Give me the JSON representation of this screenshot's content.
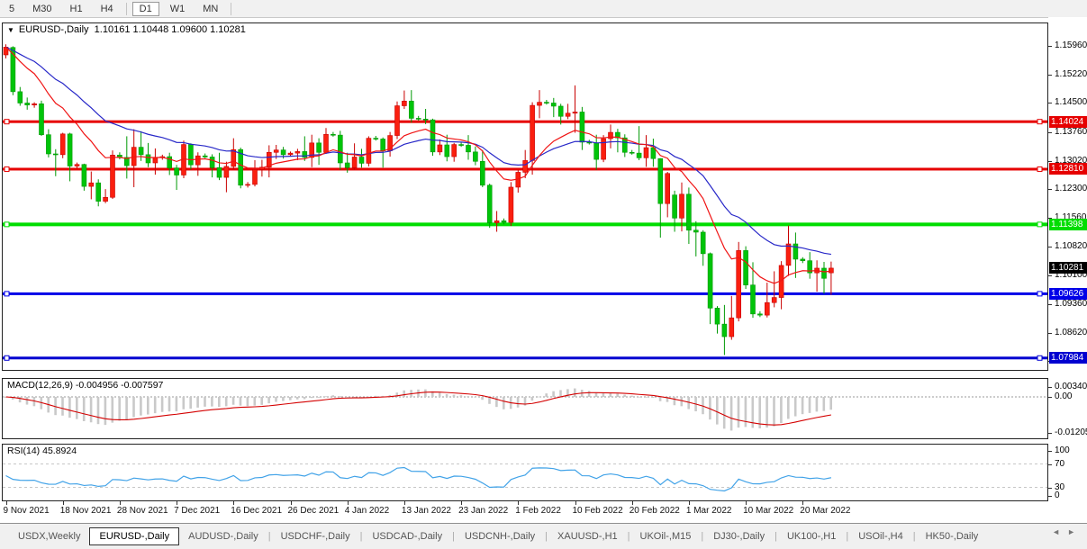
{
  "toolbar": {
    "buttons": [
      "5",
      "M30",
      "H1",
      "H4",
      "D1",
      "W1",
      "MN"
    ],
    "active": "D1"
  },
  "chart": {
    "dropdown_arrow": "▼",
    "symbol_label": "EURUSD-,Daily",
    "ohlc_text": "1.10161 1.10448 1.09600 1.10281",
    "open": "1.10161",
    "high": "1.10448",
    "low": "1.09600",
    "close": "1.10281"
  },
  "price_axis": {
    "ticks": [
      "1.15960",
      "1.15220",
      "1.14500",
      "1.13760",
      "1.13020",
      "1.12300",
      "1.11560",
      "1.10820",
      "1.10100",
      "1.09360",
      "1.08620",
      "1.07900"
    ]
  },
  "levels": [
    {
      "price": 1.14024,
      "label": "1.14024",
      "color": "#e60000",
      "width": 3
    },
    {
      "price": 1.1281,
      "label": "1.12810",
      "color": "#e60000",
      "width": 3
    },
    {
      "price": 1.11398,
      "label": "1.11398",
      "color": "#00dd00",
      "width": 4
    },
    {
      "price": 1.09626,
      "label": "1.09626",
      "color": "#0000e8",
      "width": 3
    },
    {
      "price": 1.07984,
      "label": "1.07984",
      "color": "#0000d0",
      "width": 3
    }
  ],
  "current_price": {
    "value": 1.10281,
    "label": "1.10281",
    "color": "#000000"
  },
  "chart_data": {
    "type": "candlestick",
    "symbol": "EURUSD",
    "timeframe": "Daily",
    "ylim": [
      1.079,
      1.161
    ],
    "label_every": 8,
    "x_labels": [
      "9 Nov 2021",
      "18 Nov 2021",
      "28 Nov 2021",
      "7 Dec 2021",
      "16 Dec 2021",
      "26 Dec 2021",
      "4 Jan 2022",
      "13 Jan 2022",
      "23 Jan 2022",
      "1 Feb 2022",
      "10 Feb 2022",
      "20 Feb 2022",
      "1 Mar 2022",
      "10 Mar 2022",
      "20 Mar 2022"
    ],
    "candles": [
      [
        1.1573,
        1.16,
        1.1564,
        1.1593
      ],
      [
        1.1592,
        1.1595,
        1.147,
        1.1479
      ],
      [
        1.1479,
        1.1491,
        1.1443,
        1.145
      ],
      [
        1.145,
        1.1464,
        1.1433,
        1.1445
      ],
      [
        1.1445,
        1.1452,
        1.1438,
        1.1448
      ],
      [
        1.1448,
        1.1456,
        1.1366,
        1.1369
      ],
      [
        1.1369,
        1.1383,
        1.1311,
        1.132
      ],
      [
        1.132,
        1.1332,
        1.1263,
        1.1318
      ],
      [
        1.1318,
        1.1374,
        1.1309,
        1.1371
      ],
      [
        1.1371,
        1.1374,
        1.125,
        1.1289
      ],
      [
        1.1289,
        1.1298,
        1.1283,
        1.1293
      ],
      [
        1.1293,
        1.1295,
        1.1226,
        1.1237
      ],
      [
        1.1237,
        1.1275,
        1.1204,
        1.1246
      ],
      [
        1.1246,
        1.1255,
        1.1186,
        1.1199
      ],
      [
        1.1199,
        1.123,
        1.1194,
        1.1209
      ],
      [
        1.1209,
        1.1329,
        1.1205,
        1.1317
      ],
      [
        1.1317,
        1.1324,
        1.1306,
        1.1311
      ],
      [
        1.1311,
        1.1365,
        1.1257,
        1.129
      ],
      [
        1.129,
        1.1383,
        1.1235,
        1.1337
      ],
      [
        1.1337,
        1.1378,
        1.1302,
        1.1318
      ],
      [
        1.1318,
        1.1348,
        1.1286,
        1.1297
      ],
      [
        1.1297,
        1.1334,
        1.1267,
        1.1311
      ],
      [
        1.1311,
        1.1318,
        1.1305,
        1.1313
      ],
      [
        1.1313,
        1.1323,
        1.1266,
        1.1284
      ],
      [
        1.1284,
        1.1292,
        1.1228,
        1.1266
      ],
      [
        1.1266,
        1.1354,
        1.1258,
        1.1344
      ],
      [
        1.1344,
        1.1347,
        1.128,
        1.1292
      ],
      [
        1.1292,
        1.1324,
        1.1264,
        1.1315
      ],
      [
        1.1315,
        1.1321,
        1.1309,
        1.1312
      ],
      [
        1.1312,
        1.1319,
        1.126,
        1.1285
      ],
      [
        1.1285,
        1.1323,
        1.1253,
        1.126
      ],
      [
        1.126,
        1.13,
        1.1222,
        1.1288
      ],
      [
        1.1288,
        1.136,
        1.1281,
        1.1331
      ],
      [
        1.1331,
        1.1336,
        1.1232,
        1.124
      ],
      [
        1.124,
        1.1248,
        1.1234,
        1.1242
      ],
      [
        1.1242,
        1.1304,
        1.1237,
        1.128
      ],
      [
        1.128,
        1.1305,
        1.1262,
        1.1286
      ],
      [
        1.1286,
        1.1342,
        1.126,
        1.1324
      ],
      [
        1.1324,
        1.1343,
        1.1307,
        1.133
      ],
      [
        1.133,
        1.1338,
        1.1308,
        1.1318
      ],
      [
        1.1318,
        1.1326,
        1.1314,
        1.1322
      ],
      [
        1.1322,
        1.1333,
        1.1304,
        1.1326
      ],
      [
        1.1326,
        1.1365,
        1.1302,
        1.1311
      ],
      [
        1.1311,
        1.1369,
        1.1286,
        1.1348
      ],
      [
        1.1348,
        1.136,
        1.1292,
        1.1324
      ],
      [
        1.1324,
        1.1386,
        1.132,
        1.137
      ],
      [
        1.137,
        1.1376,
        1.1364,
        1.1368
      ],
      [
        1.1368,
        1.1379,
        1.1279,
        1.1297
      ],
      [
        1.1297,
        1.1323,
        1.1272,
        1.1285
      ],
      [
        1.1285,
        1.1347,
        1.1279,
        1.1312
      ],
      [
        1.1312,
        1.1333,
        1.1285,
        1.1296
      ],
      [
        1.1296,
        1.1365,
        1.1288,
        1.136
      ],
      [
        1.136,
        1.1366,
        1.1354,
        1.1358
      ],
      [
        1.1358,
        1.1362,
        1.1285,
        1.1328
      ],
      [
        1.1328,
        1.1376,
        1.1313,
        1.1367
      ],
      [
        1.1367,
        1.1454,
        1.1358,
        1.1443
      ],
      [
        1.1443,
        1.1482,
        1.1435,
        1.1455
      ],
      [
        1.1455,
        1.1483,
        1.14,
        1.1411
      ],
      [
        1.1411,
        1.1417,
        1.1405,
        1.1409
      ],
      [
        1.1409,
        1.1435,
        1.1396,
        1.1407
      ],
      [
        1.1407,
        1.141,
        1.1315,
        1.1325
      ],
      [
        1.1325,
        1.1357,
        1.1317,
        1.1343
      ],
      [
        1.1343,
        1.1369,
        1.1301,
        1.1313
      ],
      [
        1.1313,
        1.1348,
        1.13,
        1.1344
      ],
      [
        1.1344,
        1.135,
        1.1338,
        1.1342
      ],
      [
        1.1342,
        1.1368,
        1.1305,
        1.1325
      ],
      [
        1.1325,
        1.1339,
        1.1291,
        1.1301
      ],
      [
        1.1301,
        1.133,
        1.1235,
        1.124
      ],
      [
        1.124,
        1.1244,
        1.1131,
        1.1144
      ],
      [
        1.1144,
        1.1174,
        1.1121,
        1.1149
      ],
      [
        1.1149,
        1.1155,
        1.114,
        1.1145
      ],
      [
        1.1145,
        1.1248,
        1.1136,
        1.1235
      ],
      [
        1.1235,
        1.1279,
        1.1221,
        1.1273
      ],
      [
        1.1273,
        1.133,
        1.1258,
        1.1303
      ],
      [
        1.1303,
        1.1452,
        1.1267,
        1.1444
      ],
      [
        1.1444,
        1.1483,
        1.1411,
        1.1452
      ],
      [
        1.1452,
        1.1458,
        1.1446,
        1.145
      ],
      [
        1.145,
        1.1463,
        1.1414,
        1.1442
      ],
      [
        1.1442,
        1.1448,
        1.1395,
        1.1416
      ],
      [
        1.1416,
        1.1448,
        1.1409,
        1.1424
      ],
      [
        1.1424,
        1.1495,
        1.1374,
        1.1427
      ],
      [
        1.1427,
        1.144,
        1.133,
        1.135
      ],
      [
        1.135,
        1.1356,
        1.1344,
        1.1348
      ],
      [
        1.1348,
        1.1369,
        1.1279,
        1.1306
      ],
      [
        1.1306,
        1.1368,
        1.1299,
        1.1359
      ],
      [
        1.1359,
        1.1395,
        1.1334,
        1.1375
      ],
      [
        1.1375,
        1.1384,
        1.1324,
        1.1361
      ],
      [
        1.1361,
        1.137,
        1.1312,
        1.1324
      ],
      [
        1.1324,
        1.133,
        1.1318,
        1.1322
      ],
      [
        1.1322,
        1.1391,
        1.1304,
        1.131
      ],
      [
        1.131,
        1.1368,
        1.1287,
        1.1336
      ],
      [
        1.1336,
        1.1359,
        1.1287,
        1.1308
      ],
      [
        1.1308,
        1.1309,
        1.1106,
        1.1193
      ],
      [
        1.1193,
        1.1274,
        1.1158,
        1.127
      ],
      [
        1.1215,
        1.1226,
        1.1121,
        1.1156
      ],
      [
        1.1156,
        1.1247,
        1.1122,
        1.1217
      ],
      [
        1.1217,
        1.1234,
        1.109,
        1.1125
      ],
      [
        1.1125,
        1.1148,
        1.1058,
        1.112
      ],
      [
        1.112,
        1.1125,
        1.1034,
        1.1065
      ],
      [
        1.1065,
        1.1068,
        1.0885,
        1.0926
      ],
      [
        1.0926,
        1.0931,
        1.0861,
        1.0885
      ],
      [
        1.0885,
        1.0934,
        1.0806,
        1.0853
      ],
      [
        1.0853,
        1.0957,
        1.0845,
        1.0901
      ],
      [
        1.0901,
        1.1095,
        1.0892,
        1.1073
      ],
      [
        1.1073,
        1.1084,
        1.0975,
        1.0985
      ],
      [
        1.0985,
        1.1043,
        1.0901,
        1.0911
      ],
      [
        1.0911,
        1.0918,
        1.0903,
        1.0908
      ],
      [
        1.0908,
        1.0991,
        1.0902,
        1.094
      ],
      [
        1.094,
        1.102,
        1.0928,
        1.0953
      ],
      [
        1.0953,
        1.1046,
        1.0923,
        1.1035
      ],
      [
        1.1035,
        1.1137,
        1.1008,
        1.109
      ],
      [
        1.109,
        1.1119,
        1.1003,
        1.1051
      ],
      [
        1.1051,
        1.1056,
        1.1041,
        1.1047
      ],
      [
        1.1047,
        1.1069,
        1.1001,
        1.1016
      ],
      [
        1.1016,
        1.1048,
        1.0968,
        1.1028
      ],
      [
        1.1028,
        1.1044,
        1.0963,
        1.1002
      ],
      [
        1.10161,
        1.10448,
        1.096,
        1.10281
      ]
    ],
    "moving_averages": [
      {
        "name": "EMA-12",
        "color": "#f01414"
      },
      {
        "name": "EMA-26",
        "color": "#2828c8"
      }
    ]
  },
  "macd": {
    "name": "MACD(12,26,9)",
    "values": "-0.004956 -0.007597",
    "params": {
      "fast": 12,
      "slow": 26,
      "signal": 9
    },
    "axis_ticks": [
      "0.003408",
      "0.00",
      "-0.01205"
    ],
    "range": [
      -0.01205,
      0.003408
    ]
  },
  "rsi": {
    "name": "RSI(14)",
    "value": "45.8924",
    "period": 14,
    "axis_ticks": [
      "100",
      "70",
      "30",
      "0"
    ],
    "levels": [
      70,
      30
    ],
    "range": [
      0,
      100
    ]
  },
  "tabs": {
    "items": [
      "USDX,Weekly",
      "EURUSD-,Daily",
      "AUDUSD-,Daily",
      "USDCHF-,Daily",
      "USDCAD-,Daily",
      "USDCNH-,Daily",
      "XAUUSD-,H1",
      "UKOil-,M15",
      "DJ30-,Daily",
      "UK100-,H1",
      "USOil-,H4",
      "HK50-,Daily"
    ],
    "active_index": 1,
    "scroll_left": "◄",
    "scroll_right": "►"
  },
  "colors": {
    "bull": "#fa1f0f",
    "bull_border": "#c80000",
    "bear": "#00c40a",
    "bear_border": "#009905",
    "macd_hist": "#c9c9c9",
    "macd_signal": "#d40000",
    "rsi_line": "#42a3e8",
    "level_dash": "#c6c6c6",
    "panel_border": "#222222"
  }
}
